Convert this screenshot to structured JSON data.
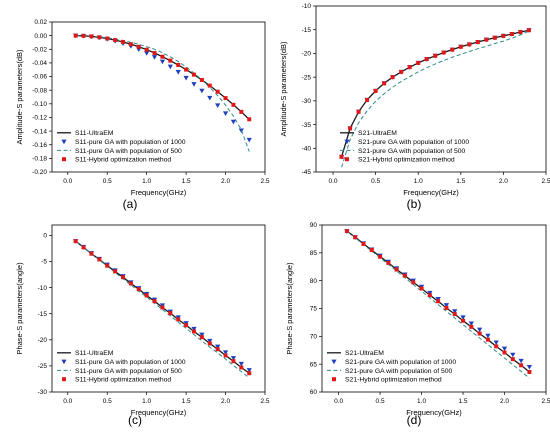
{
  "legend_labels": [
    "UltraEM",
    "pure GA with population of 1000",
    "pure GA with population of 500",
    "Hybrid optimization method"
  ],
  "colors": {
    "ultraem": "#1a1a1a",
    "ga1000": "#1f3fbf",
    "ga500": "#2e8b8b",
    "hybrid": "#e01818",
    "axis": "#000000"
  },
  "chart_data": [
    {
      "type": "line",
      "caption": "(a)",
      "xlabel": "Frequency(GHz)",
      "ylabel": "Amplitude-S parameters(dB)",
      "xlim": [
        -0.2,
        2.5
      ],
      "ylim": [
        -0.2,
        0.02
      ],
      "xticks": [
        "0.0",
        "0.5",
        "1.0",
        "1.5",
        "2.0",
        "2.5"
      ],
      "yticks": [
        "0.02",
        "0.00",
        "-0.02",
        "-0.04",
        "-0.06",
        "-0.08",
        "-0.10",
        "-0.12",
        "-0.14",
        "-0.16",
        "-0.18",
        "-0.20"
      ],
      "legend_position": "bottom-left",
      "x": [
        0.1,
        0.2,
        0.3,
        0.4,
        0.5,
        0.6,
        0.7,
        0.8,
        0.9,
        1.0,
        1.1,
        1.2,
        1.3,
        1.4,
        1.5,
        1.6,
        1.7,
        1.8,
        1.9,
        2.0,
        2.1,
        2.2,
        2.3
      ],
      "series": [
        {
          "name": "S11-UltraEM",
          "values": [
            0,
            -0.0003,
            -0.0011,
            -0.0024,
            -0.0042,
            -0.0065,
            -0.0093,
            -0.0126,
            -0.0164,
            -0.0207,
            -0.0255,
            -0.0309,
            -0.0367,
            -0.043,
            -0.0498,
            -0.0572,
            -0.065,
            -0.0733,
            -0.0822,
            -0.0916,
            -0.1015,
            -0.1118,
            -0.1227
          ]
        },
        {
          "name": "S11-pure GA with population of 1000",
          "values": [
            0,
            -0.0003,
            -0.0013,
            -0.0029,
            -0.0051,
            -0.0079,
            -0.0114,
            -0.0155,
            -0.0202,
            -0.0256,
            -0.0316,
            -0.0382,
            -0.0455,
            -0.0534,
            -0.0619,
            -0.0711,
            -0.0808,
            -0.0913,
            -0.1023,
            -0.114,
            -0.1263,
            -0.1392,
            -0.1528
          ]
        },
        {
          "name": "S11-pure GA with population of 500",
          "values": [
            0,
            -0.0002,
            -0.0008,
            -0.0018,
            -0.0032,
            -0.005,
            -0.0072,
            -0.0098,
            -0.0128,
            -0.0162,
            -0.02,
            -0.025,
            -0.031,
            -0.038,
            -0.046,
            -0.055,
            -0.065,
            -0.076,
            -0.088,
            -0.102,
            -0.118,
            -0.138,
            -0.17
          ]
        },
        {
          "name": "S11-Hybrid optimization method",
          "values": [
            0,
            -0.0003,
            -0.0011,
            -0.0024,
            -0.0042,
            -0.0065,
            -0.0093,
            -0.0126,
            -0.0164,
            -0.0207,
            -0.0255,
            -0.0309,
            -0.0367,
            -0.043,
            -0.0498,
            -0.0572,
            -0.065,
            -0.0733,
            -0.0822,
            -0.0916,
            -0.1015,
            -0.1118,
            -0.1227
          ]
        }
      ]
    },
    {
      "type": "line",
      "caption": "(b)",
      "xlabel": "Frequency(GHz)",
      "ylabel": "Amplitude-S parameters(dB)",
      "xlim": [
        -0.2,
        2.5
      ],
      "ylim": [
        -45,
        -10
      ],
      "xticks": [
        "0.0",
        "0.5",
        "1.0",
        "1.5",
        "2.0",
        "2.5"
      ],
      "yticks": [
        "-10",
        "-15",
        "-20",
        "-25",
        "-30",
        "-35",
        "-40",
        "-45"
      ],
      "legend_position": "bottom-right",
      "x": [
        0.1,
        0.2,
        0.3,
        0.4,
        0.5,
        0.6,
        0.7,
        0.8,
        0.9,
        1.0,
        1.1,
        1.2,
        1.3,
        1.4,
        1.5,
        1.6,
        1.7,
        1.8,
        1.9,
        2.0,
        2.1,
        2.2,
        2.3
      ],
      "series": [
        {
          "name": "S21-UltraEM",
          "values": [
            -41.8,
            -35.8,
            -32.3,
            -29.8,
            -27.9,
            -26.3,
            -25.0,
            -23.9,
            -22.9,
            -22.0,
            -21.2,
            -20.5,
            -19.8,
            -19.2,
            -18.6,
            -18.1,
            -17.6,
            -17.1,
            -16.7,
            -16.3,
            -15.9,
            -15.5,
            -15.1
          ]
        },
        {
          "name": "S21-pure GA with population of 1000",
          "values": [
            -41.8,
            -35.8,
            -32.3,
            -29.8,
            -27.9,
            -26.3,
            -25.0,
            -23.9,
            -22.9,
            -22.0,
            -21.2,
            -20.5,
            -19.8,
            -19.2,
            -18.6,
            -18.1,
            -17.6,
            -17.1,
            -16.7,
            -16.3,
            -15.9,
            -15.5,
            -15.1
          ]
        },
        {
          "name": "S21-pure GA with population of 500",
          "values": [
            -44.0,
            -38.2,
            -34.6,
            -32.1,
            -30.1,
            -28.5,
            -27.1,
            -25.9,
            -24.9,
            -23.9,
            -23.0,
            -22.2,
            -21.5,
            -20.8,
            -20.2,
            -19.6,
            -19.0,
            -18.5,
            -17.9,
            -17.4,
            -16.8,
            -16.1,
            -15.3
          ]
        },
        {
          "name": "S21-Hybrid optimization method",
          "values": [
            -41.8,
            -35.8,
            -32.3,
            -29.8,
            -27.9,
            -26.3,
            -25.0,
            -23.9,
            -22.9,
            -22.0,
            -21.2,
            -20.5,
            -19.8,
            -19.2,
            -18.6,
            -18.1,
            -17.6,
            -17.1,
            -16.7,
            -16.3,
            -15.9,
            -15.5,
            -15.1
          ]
        }
      ]
    },
    {
      "type": "line",
      "caption": "(c)",
      "xlabel": "Frequency(GHz)",
      "ylabel": "Phase-S parameters(angle)",
      "xlim": [
        -0.2,
        2.5
      ],
      "ylim": [
        -30,
        2
      ],
      "xticks": [
        "0.0",
        "0.5",
        "1.0",
        "1.5",
        "2.0",
        "2.5"
      ],
      "yticks": [
        "0",
        "-5",
        "-10",
        "-15",
        "-20",
        "-25",
        "-30"
      ],
      "legend_position": "bottom-left",
      "x": [
        0.1,
        0.2,
        0.3,
        0.4,
        0.5,
        0.6,
        0.7,
        0.8,
        0.9,
        1.0,
        1.1,
        1.2,
        1.3,
        1.4,
        1.5,
        1.6,
        1.7,
        1.8,
        1.9,
        2.0,
        2.1,
        2.2,
        2.3
      ],
      "series": [
        {
          "name": "S11-UltraEM",
          "values": [
            -1.1,
            -2.3,
            -3.5,
            -4.6,
            -5.8,
            -6.9,
            -8.0,
            -9.2,
            -10.3,
            -11.5,
            -12.6,
            -13.8,
            -14.9,
            -16.1,
            -17.2,
            -18.4,
            -19.5,
            -20.7,
            -21.8,
            -23.0,
            -24.1,
            -25.3,
            -26.4
          ]
        },
        {
          "name": "S11-pure GA with population of 1000",
          "values": [
            -1.1,
            -2.2,
            -3.4,
            -4.5,
            -5.6,
            -6.7,
            -7.8,
            -9.0,
            -10.1,
            -11.2,
            -12.3,
            -13.4,
            -14.6,
            -15.7,
            -16.8,
            -17.9,
            -19.0,
            -20.2,
            -21.3,
            -22.4,
            -23.5,
            -24.6,
            -25.8
          ]
        },
        {
          "name": "S11-pure GA with population of 500",
          "values": [
            -1.1,
            -2.3,
            -3.5,
            -4.7,
            -5.9,
            -7.1,
            -8.3,
            -9.5,
            -10.7,
            -11.8,
            -13.0,
            -14.2,
            -15.4,
            -16.6,
            -17.8,
            -19.0,
            -20.2,
            -21.4,
            -22.5,
            -23.7,
            -24.9,
            -26.1,
            -27.3
          ]
        },
        {
          "name": "S11-Hybrid optimization method",
          "values": [
            -1.1,
            -2.3,
            -3.5,
            -4.6,
            -5.8,
            -6.9,
            -8.0,
            -9.2,
            -10.3,
            -11.5,
            -12.6,
            -13.8,
            -14.9,
            -16.1,
            -17.2,
            -18.4,
            -19.5,
            -20.7,
            -21.8,
            -23.0,
            -24.1,
            -25.3,
            -26.4
          ]
        }
      ]
    },
    {
      "type": "line",
      "caption": "(d)",
      "xlabel": "Frequency(GHz)",
      "ylabel": "Phase-S parameters(angle)",
      "xlim": [
        -0.2,
        2.5
      ],
      "ylim": [
        60,
        90
      ],
      "xticks": [
        "0.0",
        "0.5",
        "1.0",
        "1.5",
        "2.0",
        "2.5"
      ],
      "yticks": [
        "90",
        "85",
        "80",
        "75",
        "70",
        "65",
        "60"
      ],
      "legend_position": "bottom-left",
      "x": [
        0.1,
        0.2,
        0.3,
        0.4,
        0.5,
        0.6,
        0.7,
        0.8,
        0.9,
        1.0,
        1.1,
        1.2,
        1.3,
        1.4,
        1.5,
        1.6,
        1.7,
        1.8,
        1.9,
        2.0,
        2.1,
        2.2,
        2.3
      ],
      "series": [
        {
          "name": "S21-UltraEM",
          "values": [
            88.9,
            87.8,
            86.6,
            85.5,
            84.3,
            83.2,
            82.0,
            80.9,
            79.7,
            78.6,
            77.4,
            76.3,
            75.1,
            74.0,
            72.8,
            71.7,
            70.5,
            69.4,
            68.2,
            67.1,
            65.9,
            64.8,
            63.6
          ]
        },
        {
          "name": "S21-pure GA with population of 1000",
          "values": [
            88.9,
            87.8,
            86.7,
            85.6,
            84.5,
            83.4,
            82.2,
            81.1,
            80.0,
            78.9,
            77.8,
            76.7,
            75.6,
            74.5,
            73.4,
            72.3,
            71.2,
            70.1,
            68.9,
            67.8,
            66.7,
            65.6,
            64.5
          ]
        },
        {
          "name": "S21-pure GA with population of 500",
          "values": [
            88.9,
            87.7,
            86.5,
            85.3,
            84.1,
            82.9,
            81.7,
            80.5,
            79.3,
            78.1,
            76.9,
            75.7,
            74.5,
            73.3,
            72.1,
            70.9,
            69.7,
            68.5,
            67.3,
            66.1,
            64.9,
            63.7,
            62.5
          ]
        },
        {
          "name": "S21-Hybrid optimization method",
          "values": [
            88.9,
            87.8,
            86.6,
            85.5,
            84.3,
            83.2,
            82.0,
            80.9,
            79.7,
            78.6,
            77.4,
            76.3,
            75.1,
            74.0,
            72.8,
            71.7,
            70.5,
            69.4,
            68.2,
            67.1,
            65.9,
            64.8,
            63.6
          ]
        }
      ]
    }
  ]
}
